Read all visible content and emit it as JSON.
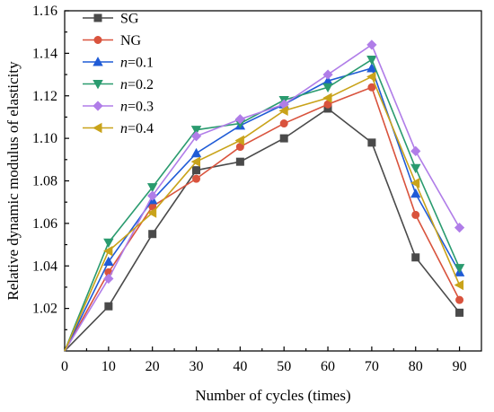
{
  "chart_data": {
    "type": "line",
    "xlabel": "Number of cycles (times)",
    "ylabel": "Relative dynamic modulus of elasticity",
    "x": [
      0,
      10,
      20,
      30,
      40,
      50,
      60,
      70,
      80,
      90
    ],
    "xlim": [
      0,
      95
    ],
    "ylim": [
      1.0,
      1.16
    ],
    "x_ticks": [
      0,
      10,
      20,
      30,
      40,
      50,
      60,
      70,
      80,
      90
    ],
    "y_ticks": [
      1.02,
      1.04,
      1.06,
      1.08,
      1.1,
      1.12,
      1.14,
      1.16
    ],
    "y_tick_labels": [
      "1.02",
      "1.04",
      "1.06",
      "1.08",
      "1.10",
      "1.12",
      "1.14",
      "1.16"
    ],
    "grid": false,
    "legend_position": "top-left",
    "series": [
      {
        "name": "SG",
        "legend_prefix": "",
        "legend_value": "SG",
        "color": "#4a4a4a",
        "marker": "square",
        "values": [
          1.0,
          1.021,
          1.055,
          1.085,
          1.089,
          1.1,
          1.114,
          1.098,
          1.044,
          1.018
        ]
      },
      {
        "name": "NG",
        "legend_prefix": "",
        "legend_value": "NG",
        "color": "#d9533d",
        "marker": "circle",
        "values": [
          1.0,
          1.037,
          1.068,
          1.081,
          1.096,
          1.107,
          1.116,
          1.124,
          1.064,
          1.024
        ]
      },
      {
        "name": "n=0.1",
        "legend_prefix": "n",
        "legend_value": "=0.1",
        "color": "#1f5bd6",
        "marker": "triangle-up",
        "values": [
          1.0,
          1.042,
          1.071,
          1.093,
          1.106,
          1.116,
          1.127,
          1.133,
          1.074,
          1.037
        ]
      },
      {
        "name": "n=0.2",
        "legend_prefix": "n",
        "legend_value": "=0.2",
        "color": "#2a9b6f",
        "marker": "triangle-down",
        "values": [
          1.0,
          1.051,
          1.077,
          1.104,
          1.107,
          1.118,
          1.124,
          1.137,
          1.086,
          1.039
        ]
      },
      {
        "name": "n=0.3",
        "legend_prefix": "n",
        "legend_value": "=0.3",
        "color": "#b07de8",
        "marker": "diamond",
        "values": [
          1.0,
          1.034,
          1.073,
          1.101,
          1.109,
          1.116,
          1.13,
          1.144,
          1.094,
          1.058
        ]
      },
      {
        "name": "n=0.4",
        "legend_prefix": "n",
        "legend_value": "=0.4",
        "color": "#c9a31a",
        "marker": "triangle-left",
        "values": [
          1.0,
          1.047,
          1.065,
          1.089,
          1.099,
          1.113,
          1.119,
          1.129,
          1.079,
          1.031
        ]
      }
    ]
  }
}
